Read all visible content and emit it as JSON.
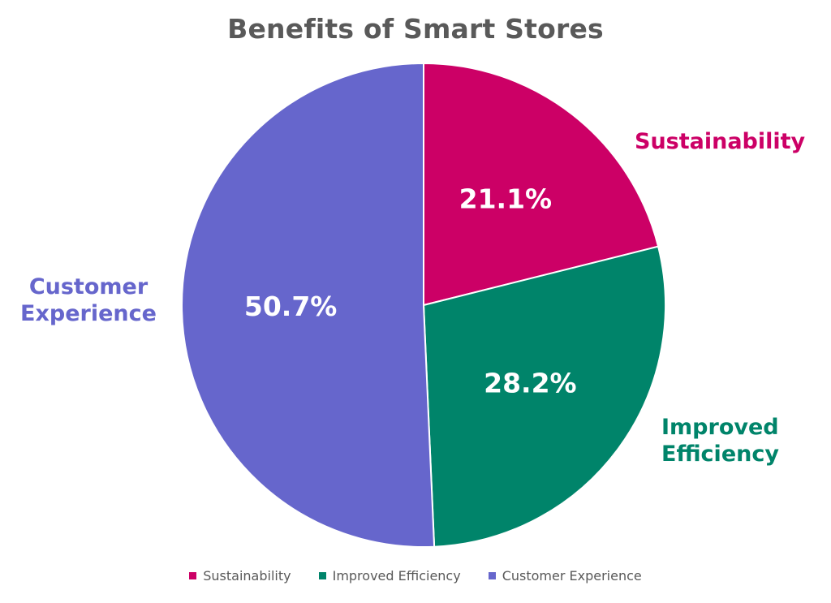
{
  "chart_data": {
    "type": "pie",
    "title": "Benefits of Smart Stores",
    "slices": [
      {
        "label": "Sustainability",
        "value": 21.1,
        "value_label": "21.1%",
        "color": "#cc0066",
        "outer_label": "Sustainability"
      },
      {
        "label": "Improved Efficiency",
        "value": 28.2,
        "value_label": "28.2%",
        "color": "#00846a",
        "outer_label": "Improved\nEfficiency"
      },
      {
        "label": "Customer Experience",
        "value": 50.7,
        "value_label": "50.7%",
        "color": "#6666cc",
        "outer_label": "Customer\nExperience"
      }
    ],
    "legend_position": "bottom"
  }
}
